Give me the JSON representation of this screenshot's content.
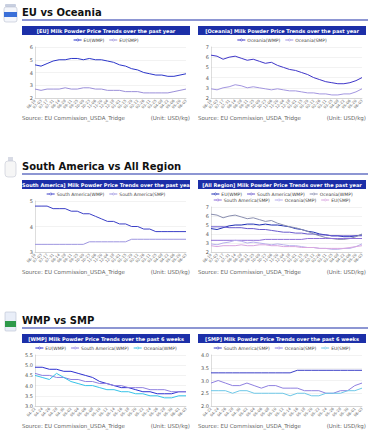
{
  "headings": [
    "EU vs Oceania",
    "South America vs All Region",
    "WMP vs SMP"
  ],
  "chart_data": [
    {
      "type": "line",
      "title": "[EU] Milk Powder Price Trends over the past year",
      "categories": [
        "06-19",
        "07-03",
        "07-17",
        "07-31",
        "08-14",
        "08-28",
        "09-11",
        "09-25",
        "10-09",
        "10-23",
        "11-06",
        "11-20",
        "12-04",
        "12-18",
        "01-01",
        "01-15",
        "01-29",
        "02-12",
        "02-26",
        "03-11",
        "03-25",
        "04-08",
        "04-22",
        "05-06",
        "05-20",
        "06-03"
      ],
      "series": [
        {
          "name": "EU(WMP)",
          "color": "#2b35c9",
          "values": [
            4.6,
            4.5,
            4.7,
            4.9,
            5.0,
            5.0,
            5.1,
            5.1,
            5.0,
            5.1,
            5.0,
            5.0,
            4.9,
            4.8,
            4.6,
            4.5,
            4.3,
            4.2,
            4.0,
            3.9,
            3.8,
            3.8,
            3.7,
            3.7,
            3.8,
            3.9
          ]
        },
        {
          "name": "EU(SMP)",
          "color": "#9b8fd9",
          "values": [
            2.7,
            2.6,
            2.7,
            2.7,
            2.7,
            2.8,
            2.7,
            2.7,
            2.8,
            2.8,
            2.7,
            2.7,
            2.6,
            2.6,
            2.6,
            2.5,
            2.5,
            2.5,
            2.4,
            2.4,
            2.4,
            2.4,
            2.4,
            2.5,
            2.6,
            2.7
          ]
        }
      ],
      "ylim": [
        2,
        6
      ],
      "yticks": [
        2,
        3,
        4,
        5,
        6
      ],
      "grid": true,
      "legend": "top",
      "annotations": [
        "Source: EU Commission_USDA_Tridge",
        "(Unit: USD/kg)"
      ]
    },
    {
      "type": "line",
      "title": "[Oceania] Milk Powder Price Trends over the past year",
      "categories": [
        "06-19",
        "07-03",
        "07-17",
        "07-31",
        "08-14",
        "08-28",
        "09-11",
        "09-25",
        "10-09",
        "10-23",
        "11-06",
        "11-20",
        "12-04",
        "12-18",
        "01-01",
        "01-15",
        "01-29",
        "02-12",
        "02-26",
        "03-11",
        "03-25",
        "04-08",
        "04-22",
        "05-06",
        "05-20",
        "06-03"
      ],
      "series": [
        {
          "name": "Oceania(WMP)",
          "color": "#3f36c9",
          "values": [
            6.2,
            6.1,
            5.8,
            6.0,
            6.1,
            5.9,
            5.7,
            5.8,
            5.6,
            5.4,
            5.5,
            5.2,
            5.0,
            4.8,
            4.7,
            4.5,
            4.3,
            4.0,
            3.8,
            3.6,
            3.5,
            3.4,
            3.4,
            3.5,
            3.7,
            4.0
          ]
        },
        {
          "name": "Oceania(SMP)",
          "color": "#a396e0",
          "values": [
            2.9,
            2.8,
            3.0,
            3.1,
            3.3,
            3.2,
            3.0,
            3.1,
            3.0,
            2.9,
            2.8,
            2.9,
            2.8,
            2.7,
            2.7,
            2.6,
            2.5,
            2.5,
            2.4,
            2.4,
            2.3,
            2.3,
            2.4,
            2.4,
            2.6,
            2.9
          ]
        }
      ],
      "ylim": [
        2,
        7
      ],
      "yticks": [
        2,
        3,
        4,
        5,
        6,
        7
      ],
      "grid": true,
      "legend": "top",
      "annotations": [
        "Source: EU Commission_USDA_Tridge",
        "(Unit: USD/kg)"
      ]
    },
    {
      "type": "line",
      "title": "[South America] Milk Powder Price Trends over the past year",
      "categories": [
        "06-19",
        "07-03",
        "07-17",
        "07-31",
        "08-14",
        "08-28",
        "09-11",
        "09-25",
        "10-09",
        "10-23",
        "11-06",
        "11-20",
        "12-04",
        "12-18",
        "01-01",
        "01-15",
        "01-29",
        "02-12",
        "02-26",
        "03-11",
        "03-25",
        "04-08",
        "04-22",
        "05-06",
        "05-20",
        "06-03"
      ],
      "series": [
        {
          "name": "South America(WMP)",
          "color": "#3b3fc7",
          "values": [
            4.8,
            4.8,
            4.8,
            4.7,
            4.7,
            4.7,
            4.6,
            4.6,
            4.5,
            4.5,
            4.4,
            4.3,
            4.2,
            4.2,
            4.1,
            4.1,
            4.0,
            4.0,
            3.9,
            3.9,
            3.8,
            3.8,
            3.8,
            3.8,
            3.8,
            3.8
          ]
        },
        {
          "name": "South America(SMP)",
          "color": "#9d95e0",
          "values": [
            3.3,
            3.3,
            3.3,
            3.3,
            3.3,
            3.3,
            3.3,
            3.3,
            3.3,
            3.4,
            3.4,
            3.4,
            3.4,
            3.4,
            3.4,
            3.4,
            3.5,
            3.5,
            3.5,
            3.5,
            3.5,
            3.5,
            3.5,
            3.5,
            3.5,
            3.5
          ]
        }
      ],
      "ylim": [
        3,
        5
      ],
      "yticks": [
        3,
        4,
        5
      ],
      "grid": true,
      "legend": "top",
      "annotations": [
        "Source: EU Commission_USDA_Tridge",
        "(Unit: USD/kg)"
      ]
    },
    {
      "type": "line",
      "title": "[All Region] Milk Powder Price Trends over the past year",
      "categories": [
        "06-19",
        "07-03",
        "07-17",
        "07-31",
        "08-14",
        "08-28",
        "09-11",
        "09-25",
        "10-09",
        "10-23",
        "11-06",
        "11-20",
        "12-04",
        "12-18",
        "01-01",
        "01-15",
        "01-29",
        "02-12",
        "02-26",
        "03-11",
        "03-25",
        "04-08",
        "04-22",
        "05-06",
        "05-20",
        "06-03"
      ],
      "series": [
        {
          "name": "EU(WMP)",
          "color": "#1f2fb5",
          "values": [
            4.6,
            4.5,
            4.7,
            4.9,
            5.0,
            5.0,
            5.1,
            5.1,
            5.0,
            5.1,
            5.0,
            5.0,
            4.9,
            4.8,
            4.6,
            4.5,
            4.3,
            4.2,
            4.0,
            3.9,
            3.8,
            3.8,
            3.7,
            3.7,
            3.8,
            3.9
          ]
        },
        {
          "name": "South America(WMP)",
          "color": "#6a5acd",
          "values": [
            4.8,
            4.8,
            4.8,
            4.7,
            4.7,
            4.7,
            4.6,
            4.6,
            4.5,
            4.5,
            4.4,
            4.3,
            4.2,
            4.2,
            4.1,
            4.1,
            4.0,
            4.0,
            3.9,
            3.9,
            3.8,
            3.8,
            3.8,
            3.8,
            3.8,
            3.8
          ]
        },
        {
          "name": "Oceania(WMP)",
          "color": "#8a8fb0",
          "values": [
            6.2,
            6.1,
            5.8,
            6.0,
            6.1,
            5.9,
            5.7,
            5.8,
            5.6,
            5.4,
            5.5,
            5.2,
            5.0,
            4.8,
            4.7,
            4.5,
            4.3,
            4.0,
            3.8,
            3.6,
            3.5,
            3.4,
            3.4,
            3.5,
            3.7,
            4.0
          ]
        },
        {
          "name": "South America(SMP)",
          "color": "#8f6fd8",
          "values": [
            3.3,
            3.3,
            3.3,
            3.3,
            3.3,
            3.3,
            3.3,
            3.3,
            3.3,
            3.4,
            3.4,
            3.4,
            3.4,
            3.4,
            3.4,
            3.4,
            3.5,
            3.5,
            3.5,
            3.5,
            3.5,
            3.5,
            3.5,
            3.5,
            3.5,
            3.5
          ]
        },
        {
          "name": "Oceania(SMP)",
          "color": "#b9b0ec",
          "values": [
            2.9,
            2.8,
            3.0,
            3.1,
            3.3,
            3.2,
            3.0,
            3.1,
            3.0,
            2.9,
            2.8,
            2.9,
            2.8,
            2.7,
            2.7,
            2.6,
            2.5,
            2.5,
            2.4,
            2.4,
            2.3,
            2.3,
            2.4,
            2.4,
            2.6,
            2.9
          ]
        },
        {
          "name": "EU(SMP)",
          "color": "#d9a6e0",
          "values": [
            2.7,
            2.6,
            2.7,
            2.7,
            2.7,
            2.8,
            2.7,
            2.7,
            2.8,
            2.8,
            2.7,
            2.7,
            2.6,
            2.6,
            2.6,
            2.5,
            2.5,
            2.5,
            2.4,
            2.4,
            2.4,
            2.4,
            2.4,
            2.5,
            2.6,
            2.7
          ]
        }
      ],
      "ylim": [
        2,
        7
      ],
      "yticks": [
        2,
        3,
        4,
        5,
        6,
        7
      ],
      "grid": true,
      "legend": "top",
      "annotations": [
        "Source: EU Commission_USDA_Tridge",
        "(Unit: USD/kg)"
      ]
    },
    {
      "type": "line",
      "title": "[WMP] Milk Powder Price Trends over the past 6 weeks",
      "categories": [
        "04-22",
        "04-24",
        "04-26",
        "04-28",
        "04-30",
        "05-02",
        "05-04",
        "05-06",
        "05-08",
        "05-10",
        "05-12",
        "05-14",
        "05-16",
        "05-18",
        "05-20",
        "05-22",
        "05-24",
        "05-26",
        "05-28",
        "05-30",
        "06-01",
        "06-03"
      ],
      "series": [
        {
          "name": "EU(WMP)",
          "color": "#2c2fd0",
          "values": [
            4.9,
            4.9,
            4.8,
            4.8,
            4.7,
            4.7,
            4.6,
            4.5,
            4.4,
            4.2,
            4.1,
            4.0,
            3.9,
            3.9,
            3.8,
            3.7,
            3.7,
            3.6,
            3.6,
            3.6,
            3.7,
            3.7
          ]
        },
        {
          "name": "South America(WMP)",
          "color": "#8f80e0",
          "values": [
            4.6,
            4.5,
            4.5,
            4.4,
            4.4,
            4.3,
            4.3,
            4.2,
            4.2,
            4.1,
            4.1,
            4.0,
            4.0,
            3.9,
            3.9,
            3.9,
            3.8,
            3.8,
            3.8,
            3.7,
            3.7,
            3.7
          ]
        },
        {
          "name": "Oceania(WMP)",
          "color": "#36c3e8",
          "values": [
            4.5,
            4.4,
            4.3,
            4.6,
            4.4,
            4.2,
            4.1,
            4.0,
            4.0,
            3.9,
            3.8,
            3.8,
            3.7,
            3.7,
            3.6,
            3.6,
            3.5,
            3.5,
            3.4,
            3.4,
            3.5,
            3.5
          ]
        }
      ],
      "ylim": [
        3,
        5.5
      ],
      "yticks": [
        {
          "value": 3,
          "label": "3.0"
        },
        3.5,
        {
          "value": 4,
          "label": "4.0"
        },
        4.5,
        {
          "value": 5,
          "label": "5.0"
        },
        5.5
      ],
      "grid": true,
      "legend": "top",
      "annotations": [
        "Source: EU Commission_USDA_Tridge",
        "(Unit: USD/kg)"
      ]
    },
    {
      "type": "line",
      "title": "[SMP] Milk Powder Price Trends over the past 6 weeks",
      "categories": [
        "04-22",
        "04-24",
        "04-26",
        "04-28",
        "04-30",
        "05-02",
        "05-04",
        "05-06",
        "05-08",
        "05-10",
        "05-12",
        "05-14",
        "05-16",
        "05-18",
        "05-20",
        "05-22",
        "05-24",
        "05-26",
        "05-28",
        "05-30",
        "06-01",
        "06-03"
      ],
      "series": [
        {
          "name": "South America(SMP)",
          "color": "#3b3fc7",
          "values": [
            3.3,
            3.3,
            3.3,
            3.3,
            3.3,
            3.3,
            3.3,
            3.3,
            3.3,
            3.3,
            3.3,
            3.3,
            3.4,
            3.4,
            3.4,
            3.4,
            3.4,
            3.4,
            3.4,
            3.4,
            3.4,
            3.4
          ]
        },
        {
          "name": "Oceania(SMP)",
          "color": "#8f80e0",
          "values": [
            2.9,
            3.0,
            2.9,
            2.8,
            2.8,
            2.9,
            2.8,
            2.7,
            2.8,
            2.8,
            2.7,
            2.7,
            2.7,
            2.6,
            2.6,
            2.6,
            2.5,
            2.5,
            2.6,
            2.6,
            2.8,
            2.9
          ]
        },
        {
          "name": "EU(SMP)",
          "color": "#6ec8e8",
          "values": [
            2.6,
            2.6,
            2.6,
            2.5,
            2.6,
            2.6,
            2.5,
            2.5,
            2.5,
            2.5,
            2.5,
            2.4,
            2.5,
            2.5,
            2.4,
            2.4,
            2.5,
            2.5,
            2.5,
            2.6,
            2.6,
            2.7
          ]
        }
      ],
      "ylim": [
        2,
        4
      ],
      "yticks": [
        {
          "value": 2,
          "label": "2.0"
        },
        2.5,
        {
          "value": 3,
          "label": "3.0"
        },
        3.5,
        {
          "value": 4,
          "label": "4.0"
        }
      ],
      "grid": true,
      "legend": "top",
      "annotations": [
        "Source: EU Commission_USDA_Tridge",
        "(Unit: USD/kg)"
      ]
    }
  ]
}
